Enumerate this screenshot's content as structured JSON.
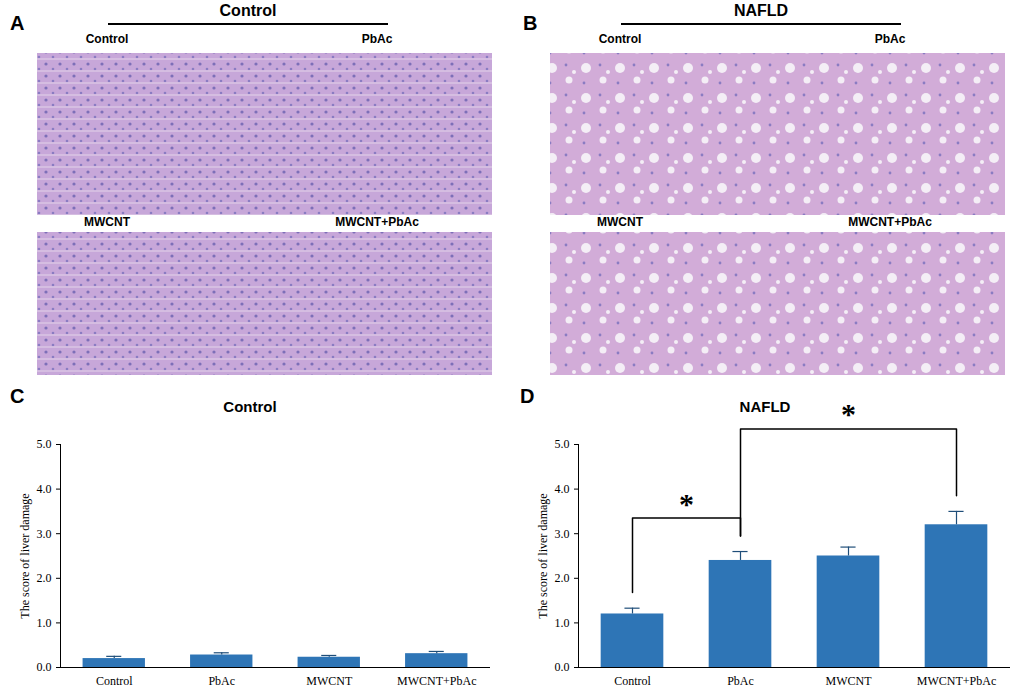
{
  "image_panels": [
    {
      "panel": "A",
      "title": "Control",
      "labels": [
        "Control",
        "PbAc",
        "MWCNT",
        "MWCNT+PbAc"
      ]
    },
    {
      "panel": "B",
      "title": "NAFLD",
      "labels": [
        "Control",
        "PbAc",
        "MWCNT",
        "MWCNT+PbAc"
      ]
    }
  ],
  "chart_data": [
    {
      "type": "bar",
      "panel": "C",
      "title": "Control",
      "y_label": "The score of liver damage",
      "categories": [
        "Control",
        "PbAc",
        "MWCNT",
        "MWCNT+PbAc"
      ],
      "values": [
        0.2,
        0.28,
        0.23,
        0.31
      ],
      "errors": [
        0.05,
        0.05,
        0.04,
        0.05
      ],
      "color": "#2e75b6",
      "ylim": [
        0,
        5
      ],
      "yticks": [
        0,
        1,
        2,
        3,
        4,
        5
      ],
      "grid": false
    },
    {
      "type": "bar",
      "panel": "D",
      "title": "NAFLD",
      "y_label": "The score of liver damage",
      "categories": [
        "Control",
        "PbAc",
        "MWCNT",
        "MWCNT+PbAc"
      ],
      "values": [
        1.2,
        2.4,
        2.5,
        3.2
      ],
      "errors": [
        0.13,
        0.2,
        0.2,
        0.3
      ],
      "color": "#2e75b6",
      "ylim": [
        0,
        5
      ],
      "yticks": [
        0,
        1,
        2,
        3,
        4,
        5
      ],
      "grid": false,
      "annotations": [
        {
          "from": "Control",
          "to": "PbAc",
          "text": "*"
        },
        {
          "from": "PbAc",
          "to": "MWCNT+PbAc",
          "text": "*"
        }
      ]
    }
  ]
}
